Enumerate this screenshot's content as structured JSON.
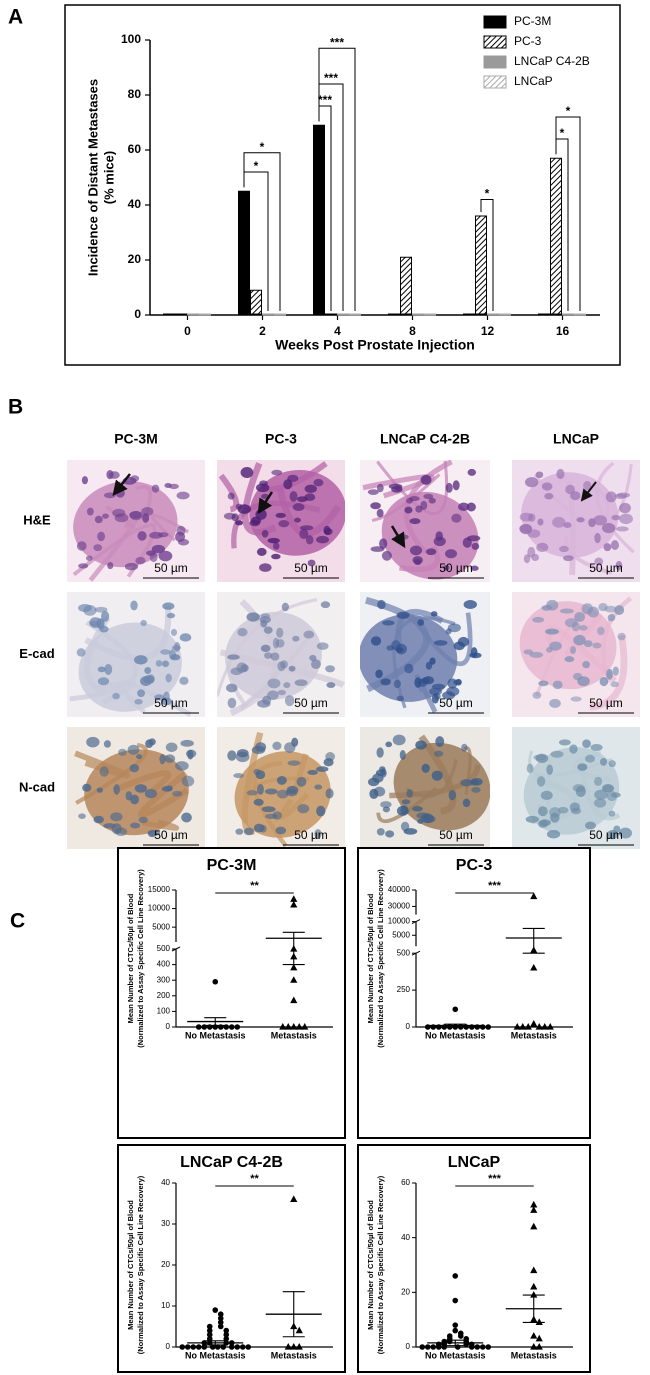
{
  "panels": {
    "a": "A",
    "b": "B",
    "c": "C"
  },
  "chart_data": [
    {
      "type": "bar",
      "categories": [
        "0",
        "2",
        "4",
        "8",
        "12",
        "16"
      ],
      "xlabel": "Weeks Post Prostate Injection",
      "ylabel": [
        "Incidence of Distant Metastases",
        "(% mice)"
      ],
      "ylim": [
        0,
        100
      ],
      "yticks": [
        0,
        20,
        40,
        60,
        80,
        100
      ],
      "legend": "top-right",
      "series": [
        {
          "name": "PC-3M",
          "color": "#000000",
          "values": [
            0,
            45,
            69,
            0,
            0,
            0
          ]
        },
        {
          "name": "PC-3",
          "color": "#000000",
          "hatch": true,
          "values": [
            0,
            9,
            0,
            21,
            36,
            57
          ]
        },
        {
          "name": "LNCaP C4-2B",
          "color": "#9a9a9a",
          "values": [
            0,
            0,
            0,
            0,
            0,
            0
          ]
        },
        {
          "name": "LNCaP",
          "color": "#aaaaaa",
          "hatch": true,
          "values": [
            0,
            0,
            0,
            0,
            0,
            0
          ]
        }
      ],
      "annotations": [
        {
          "category": "2",
          "from": "PC-3M",
          "to": "LNCaP C4-2B",
          "y": 52,
          "label": "*"
        },
        {
          "category": "2",
          "from": "PC-3M",
          "to": "LNCaP",
          "y": 59,
          "label": "*"
        },
        {
          "category": "4",
          "from": "PC-3M",
          "to": "PC-3",
          "y": 76,
          "label": "***"
        },
        {
          "category": "4",
          "from": "PC-3M",
          "to": "LNCaP C4-2B",
          "y": 84,
          "label": "***"
        },
        {
          "category": "4",
          "from": "PC-3M",
          "to": "LNCaP",
          "y": 97,
          "label": "***"
        },
        {
          "category": "12",
          "from": "PC-3",
          "to": "LNCaP C4-2B",
          "y": 42,
          "label": "*"
        },
        {
          "category": "16",
          "from": "PC-3",
          "to": "LNCaP C4-2B",
          "y": 64,
          "label": "*"
        },
        {
          "category": "16",
          "from": "PC-3",
          "to": "LNCaP",
          "y": 72,
          "label": "*"
        }
      ]
    },
    {
      "type": "scatter",
      "title": "PC-3M",
      "ylabel": [
        "Mean Number of CTCs/50µl of Blood",
        "(Normalized to Assay Specific Cell Line Recovery)"
      ],
      "categories": [
        "No Metastasis",
        "Metastasis"
      ],
      "ylim": [
        0,
        15000
      ],
      "ysegments": [
        [
          0,
          500
        ],
        [
          1000,
          15000
        ]
      ],
      "yticks": [
        0,
        100,
        200,
        300,
        400,
        500,
        5000,
        10000,
        15000
      ],
      "significance": "**",
      "groups": [
        {
          "marker": "circle",
          "values": [
            0,
            0,
            0,
            0,
            0,
            0,
            0,
            0,
            290
          ],
          "mean": 35,
          "sem": 25
        },
        {
          "marker": "triangle",
          "values": [
            12500,
            11000,
            500,
            450,
            380,
            300,
            170,
            0,
            0,
            0,
            0,
            0
          ],
          "mean": 2000,
          "sem": 1600
        }
      ]
    },
    {
      "type": "scatter",
      "title": "PC-3",
      "ylabel": [
        "Mean Number of CTCs/50µl of Blood",
        "(Normalized to Assay Specific Cell Line Recovery)"
      ],
      "categories": [
        "No Metastasis",
        "Metastasis"
      ],
      "ylim": [
        0,
        40000
      ],
      "ysegments": [
        [
          0,
          500
        ],
        [
          1000,
          10000
        ],
        [
          25000,
          40000
        ]
      ],
      "yticks": [
        0,
        250,
        500,
        5000,
        10000,
        30000,
        40000
      ],
      "significance": "***",
      "groups": [
        {
          "marker": "circle",
          "values": [
            0,
            0,
            0,
            0,
            0,
            0,
            0,
            0,
            0,
            0,
            0,
            0,
            120
          ],
          "mean": 10,
          "sem": 9
        },
        {
          "marker": "triangle",
          "values": [
            36000,
            700,
            400,
            20,
            0,
            0,
            0,
            0,
            0,
            0
          ],
          "mean": 4000,
          "sem": 3500
        }
      ]
    },
    {
      "type": "scatter",
      "title": "LNCaP C4-2B",
      "ylabel": [
        "Mean Number of CTCs/50µl of Blood",
        "(Normalized to Assay Specific Cell Line Recovery)"
      ],
      "categories": [
        "No Metastasis",
        "Metastasis"
      ],
      "ylim": [
        0,
        40
      ],
      "yticks": [
        0,
        10,
        20,
        30,
        40
      ],
      "significance": "**",
      "groups": [
        {
          "marker": "circle",
          "values": [
            9,
            8,
            7,
            6,
            5,
            5,
            4,
            4,
            3,
            3,
            2,
            2,
            1,
            1,
            1,
            1,
            0,
            0,
            0,
            0,
            0,
            0,
            0,
            0,
            0,
            0,
            0,
            0
          ],
          "mean": 1,
          "sem": 0.5
        },
        {
          "marker": "triangle",
          "values": [
            36,
            5,
            4,
            0,
            0,
            0
          ],
          "mean": 8,
          "sem": 5.5
        }
      ]
    },
    {
      "type": "scatter",
      "title": "LNCaP",
      "ylabel": [
        "Mean Number of CTCs/50µl of Blood",
        "(Normalized to Assay Specific Cell Line Recovery)"
      ],
      "categories": [
        "No Metastasis",
        "Metastasis"
      ],
      "ylim": [
        0,
        60
      ],
      "yticks": [
        0,
        20,
        40,
        60
      ],
      "significance": "***",
      "groups": [
        {
          "marker": "circle",
          "values": [
            26,
            17,
            8,
            6,
            5,
            4,
            4,
            3,
            3,
            2,
            2,
            2,
            1,
            1,
            1,
            1,
            0,
            0,
            0,
            0,
            0,
            0,
            0,
            0,
            0,
            0
          ],
          "mean": 1.5,
          "sem": 1
        },
        {
          "marker": "triangle",
          "values": [
            52,
            50,
            44,
            28,
            22,
            19,
            10,
            9,
            4,
            3,
            0,
            0
          ],
          "mean": 14,
          "sem": 5
        }
      ]
    }
  ],
  "histology": {
    "columns": [
      "PC-3M",
      "PC-3",
      "LNCaP C4-2B",
      "LNCaP"
    ],
    "rows": [
      "H&E",
      "E-cad",
      "N-cad"
    ],
    "scale_bar": "50 µm"
  }
}
